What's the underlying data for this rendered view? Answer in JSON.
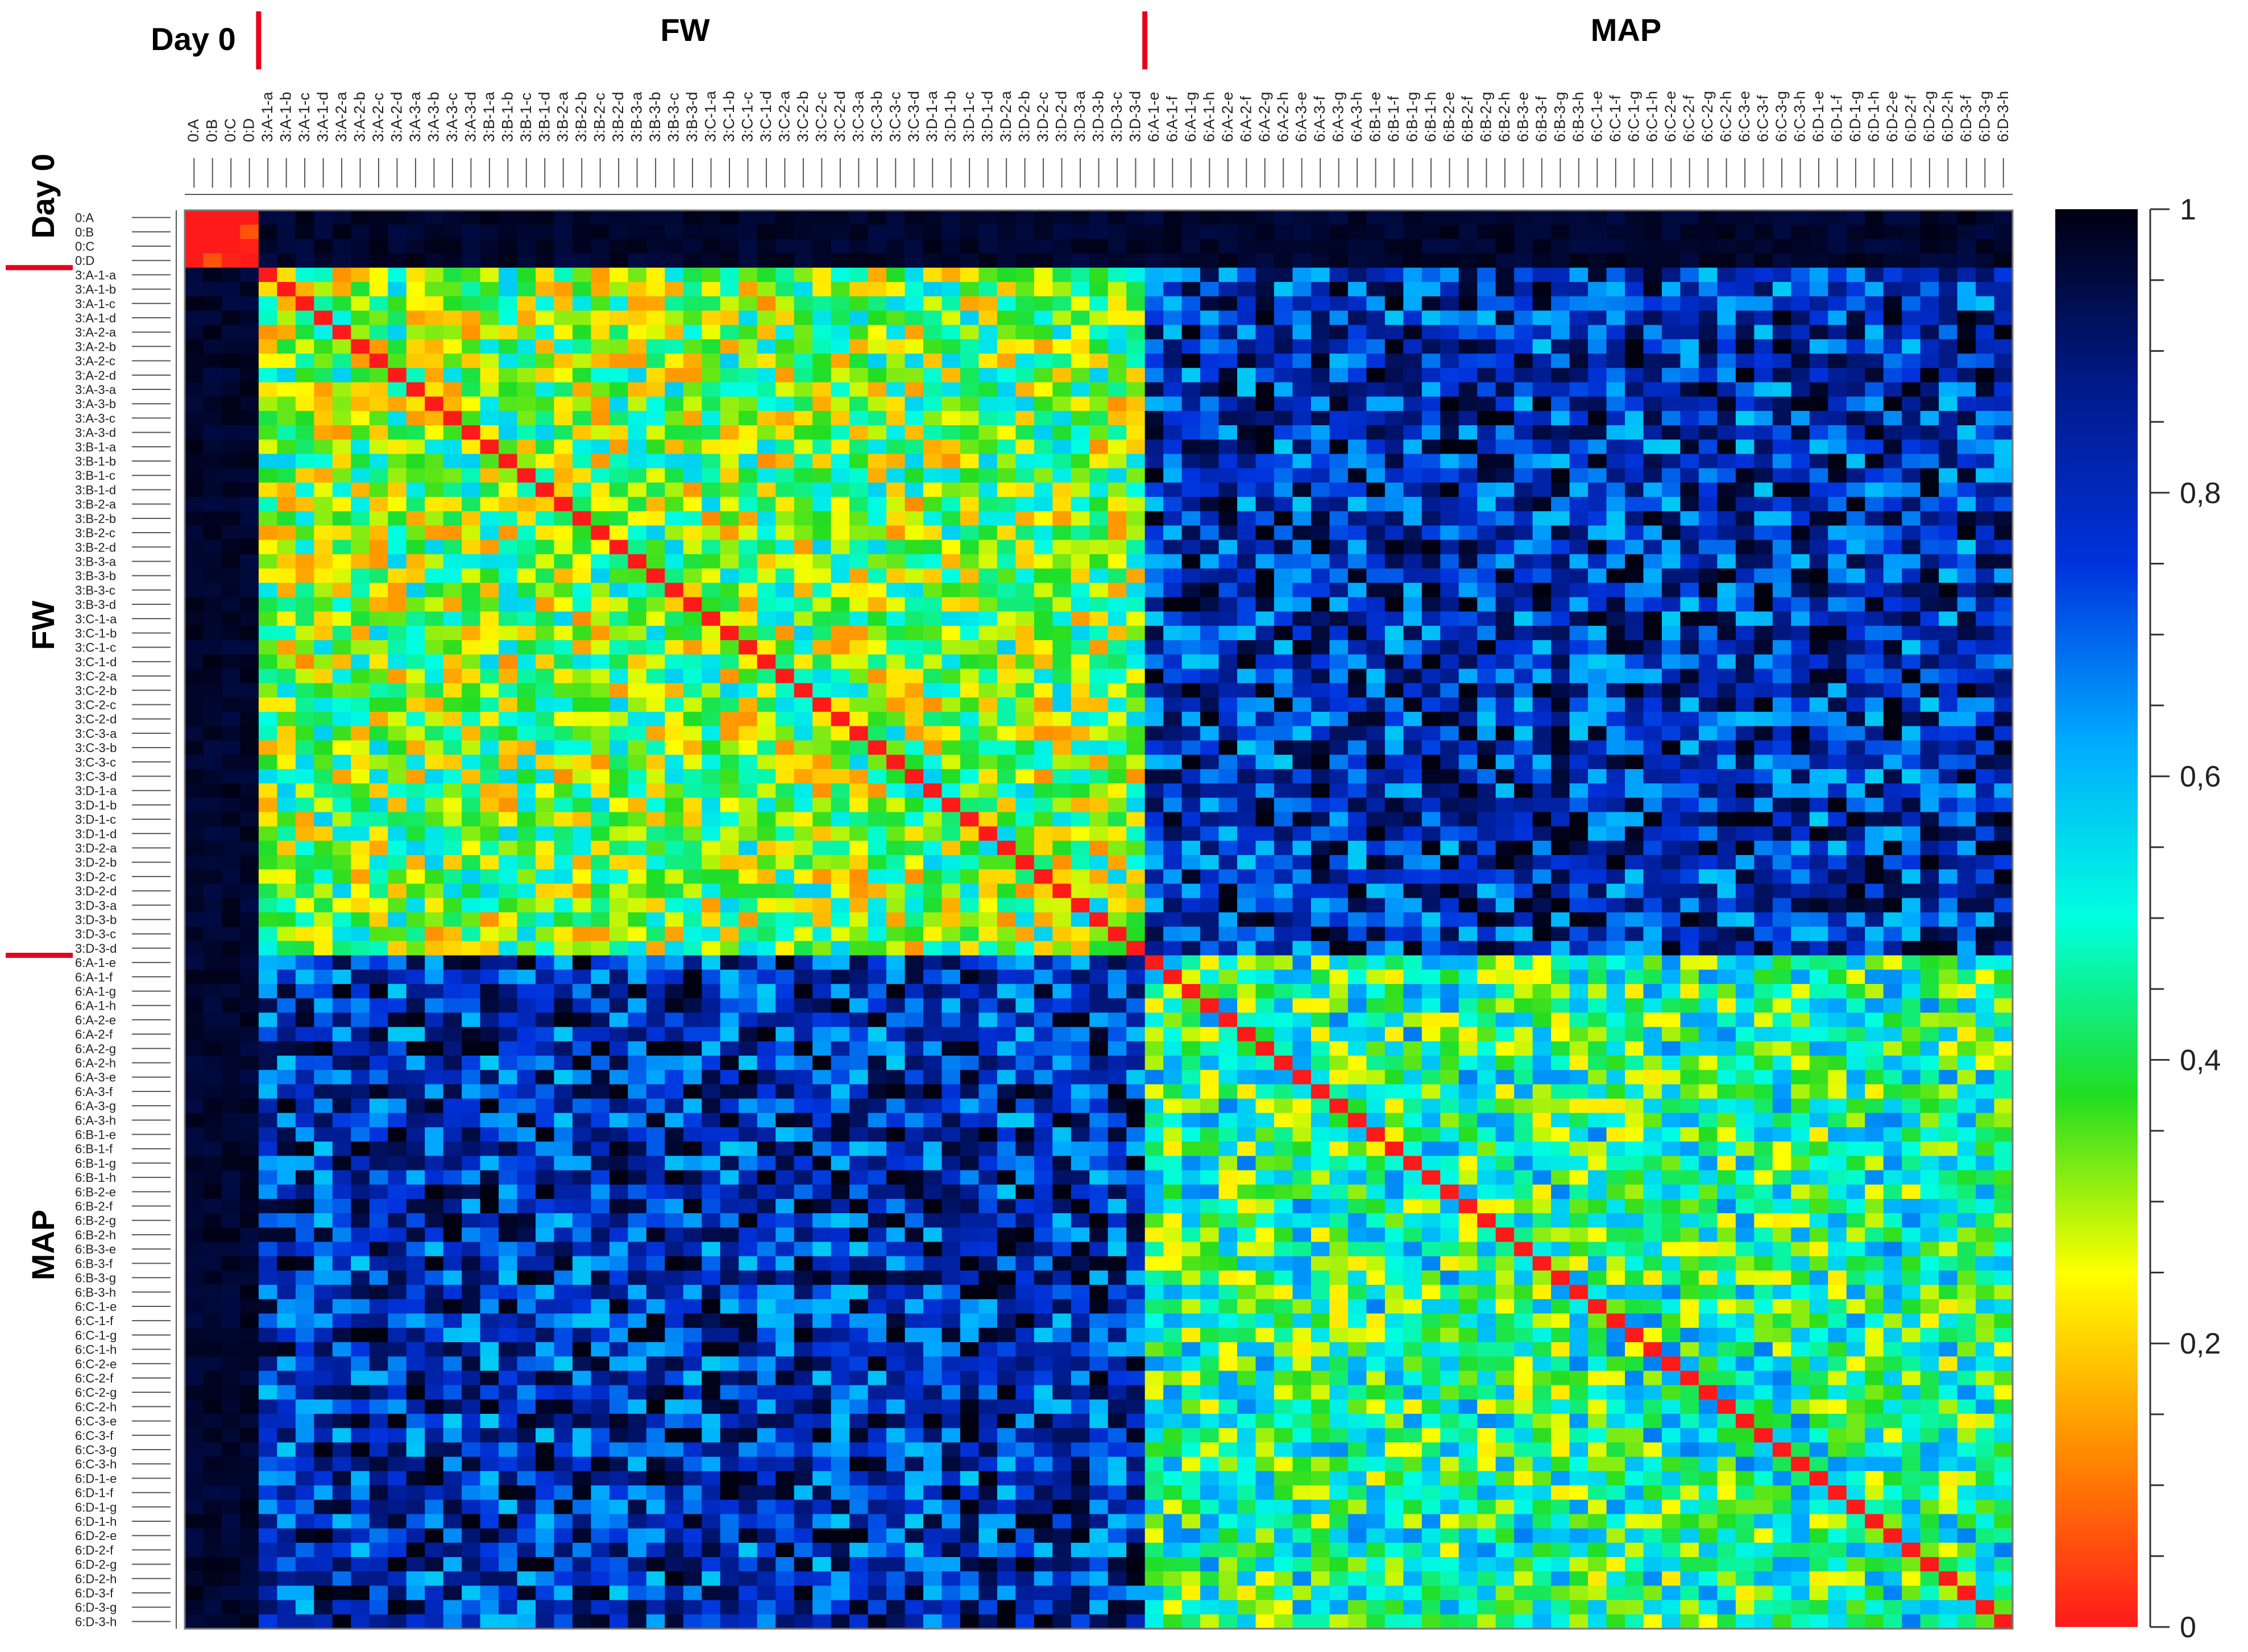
{
  "chart_data": {
    "type": "heatmap",
    "title": "",
    "xlabel": "",
    "ylabel": "",
    "group_labels": [
      "Day 0",
      "FW",
      "MAP"
    ],
    "labels": [
      "0:A",
      "0:B",
      "0:C",
      "0:D",
      "3:A-1-a",
      "3:A-1-b",
      "3:A-1-c",
      "3:A-1-d",
      "3:A-2-a",
      "3:A-2-b",
      "3:A-2-c",
      "3:A-2-d",
      "3:A-3-a",
      "3:A-3-b",
      "3:A-3-c",
      "3:A-3-d",
      "3:B-1-a",
      "3:B-1-b",
      "3:B-1-c",
      "3:B-1-d",
      "3:B-2-a",
      "3:B-2-b",
      "3:B-2-c",
      "3:B-2-d",
      "3:B-3-a",
      "3:B-3-b",
      "3:B-3-c",
      "3:B-3-d",
      "3:C-1-a",
      "3:C-1-b",
      "3:C-1-c",
      "3:C-1-d",
      "3:C-2-a",
      "3:C-2-b",
      "3:C-2-c",
      "3:C-2-d",
      "3:C-3-a",
      "3:C-3-b",
      "3:C-3-c",
      "3:C-3-d",
      "3:D-1-a",
      "3:D-1-b",
      "3:D-1-c",
      "3:D-1-d",
      "3:D-2-a",
      "3:D-2-b",
      "3:D-2-c",
      "3:D-2-d",
      "3:D-3-a",
      "3:D-3-b",
      "3:D-3-c",
      "3:D-3-d",
      "6:A-1-e",
      "6:A-1-f",
      "6:A-1-g",
      "6:A-1-h",
      "6:A-2-e",
      "6:A-2-f",
      "6:A-2-g",
      "6:A-2-h",
      "6:A-3-e",
      "6:A-3-f",
      "6:A-3-g",
      "6:A-3-h",
      "6:B-1-e",
      "6:B-1-f",
      "6:B-1-g",
      "6:B-1-h",
      "6:B-2-e",
      "6:B-2-f",
      "6:B-2-g",
      "6:B-2-h",
      "6:B-3-e",
      "6:B-3-f",
      "6:B-3-g",
      "6:B-3-h",
      "6:C-1-e",
      "6:C-1-f",
      "6:C-1-g",
      "6:C-1-h",
      "6:C-2-e",
      "6:C-2-f",
      "6:C-2-g",
      "6:C-2-h",
      "6:C-3-e",
      "6:C-3-f",
      "6:C-3-g",
      "6:C-3-h",
      "6:D-1-e",
      "6:D-1-f",
      "6:D-1-g",
      "6:D-1-h",
      "6:D-2-e",
      "6:D-2-f",
      "6:D-2-g",
      "6:D-2-h",
      "6:D-3-f",
      "6:D-3-g",
      "6:D-3-h"
    ],
    "groups": [
      {
        "name": "Day 0",
        "start": 0,
        "end": 3
      },
      {
        "name": "FW",
        "start": 4,
        "end": 51
      },
      {
        "name": "MAP",
        "start": 52,
        "end": 98
      }
    ],
    "block_similarity_estimate": [
      [
        0.1,
        0.97,
        0.97
      ],
      [
        0.97,
        0.35,
        0.8
      ],
      [
        0.97,
        0.8,
        0.45
      ]
    ],
    "diagonal_value": 0.0,
    "colorbar": {
      "range": [
        0,
        1
      ],
      "tick_values": [
        0,
        0.2,
        0.4,
        0.6,
        0.8,
        1
      ],
      "tick_labels": [
        "0",
        "0,2",
        "0,4",
        "0,6",
        "0,8",
        "1"
      ],
      "colors": [
        "#ff1a1a",
        "#ff8c00",
        "#ffff00",
        "#22dd22",
        "#00ffe0",
        "#00aaff",
        "#0033dd",
        "#001a8a",
        "#000010"
      ]
    },
    "separator_color": "#e8001c",
    "grid": false,
    "legend_position": "right"
  }
}
